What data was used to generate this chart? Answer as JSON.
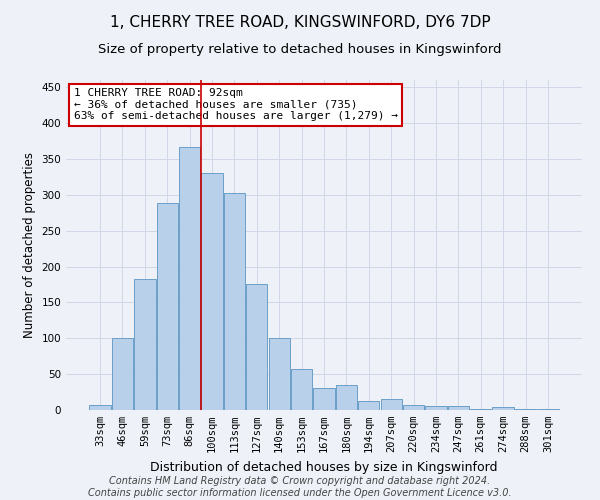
{
  "title": "1, CHERRY TREE ROAD, KINGSWINFORD, DY6 7DP",
  "subtitle": "Size of property relative to detached houses in Kingswinford",
  "xlabel": "Distribution of detached houses by size in Kingswinford",
  "ylabel": "Number of detached properties",
  "footer_line1": "Contains HM Land Registry data © Crown copyright and database right 2024.",
  "footer_line2": "Contains public sector information licensed under the Open Government Licence v3.0.",
  "categories": [
    "33sqm",
    "46sqm",
    "59sqm",
    "73sqm",
    "86sqm",
    "100sqm",
    "113sqm",
    "127sqm",
    "140sqm",
    "153sqm",
    "167sqm",
    "180sqm",
    "194sqm",
    "207sqm",
    "220sqm",
    "234sqm",
    "247sqm",
    "261sqm",
    "274sqm",
    "288sqm",
    "301sqm"
  ],
  "values": [
    7,
    101,
    182,
    289,
    366,
    330,
    303,
    176,
    100,
    57,
    31,
    35,
    12,
    16,
    7,
    5,
    5,
    1,
    4,
    2,
    2
  ],
  "bar_color": "#b8d0ea",
  "bar_edge_color": "#6a9fc8",
  "grid_color": "#d0d8e8",
  "background_color": "#eef2f8",
  "red_line_x": 4.5,
  "annotation_text": "1 CHERRY TREE ROAD: 92sqm\n← 36% of detached houses are smaller (735)\n63% of semi-detached houses are larger (1,279) →",
  "annotation_box_color": "#ffffff",
  "annotation_box_edge_color": "#cc0000",
  "ylim": [
    0,
    460
  ],
  "yticks": [
    0,
    50,
    100,
    150,
    200,
    250,
    300,
    350,
    400,
    450
  ],
  "title_fontsize": 11,
  "subtitle_fontsize": 9.5,
  "xlabel_fontsize": 9,
  "ylabel_fontsize": 8.5,
  "tick_fontsize": 7.5,
  "footer_fontsize": 7,
  "annotation_fontsize": 8
}
